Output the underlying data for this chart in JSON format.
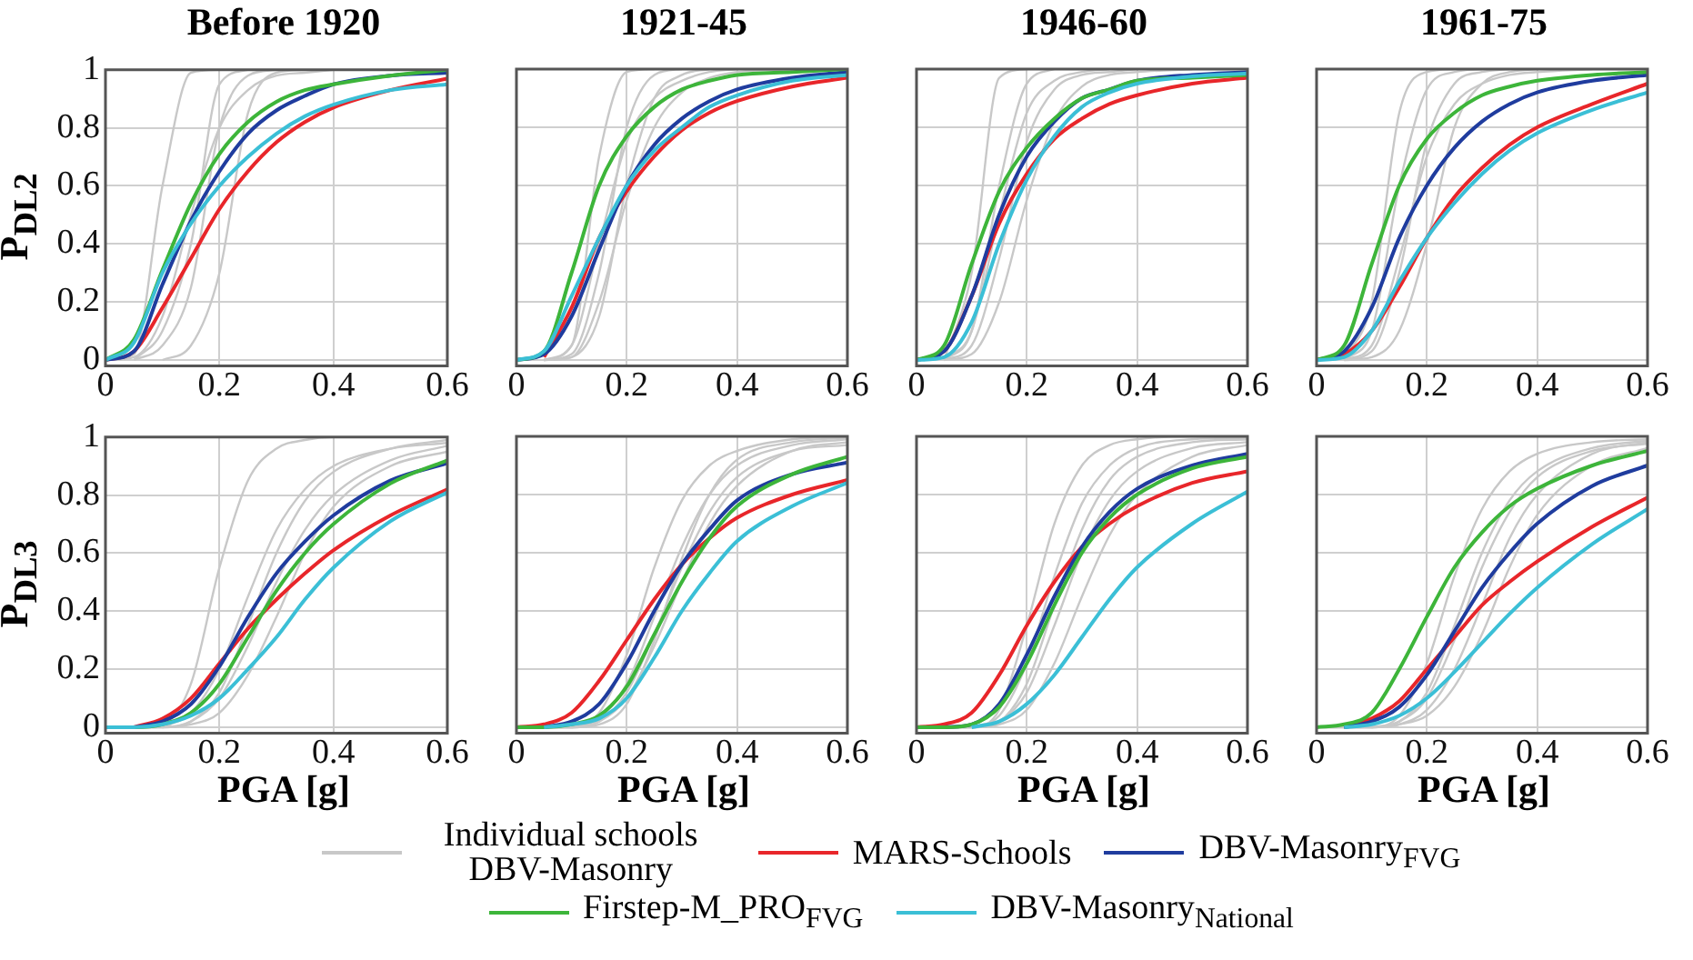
{
  "chart_data": [
    {
      "type": "line",
      "title": "Before 1920",
      "ylabel": "P$_{DL2}$",
      "x": [
        0,
        0.05,
        0.1,
        0.15,
        0.2,
        0.25,
        0.3,
        0.35,
        0.4,
        0.5,
        0.6
      ],
      "xlim": [
        0,
        0.6
      ],
      "ylim": [
        -0.02,
        1
      ],
      "xticks": [
        0,
        0.2,
        0.4,
        0.6
      ],
      "yticks": [
        0,
        0.2,
        0.4,
        0.6,
        0.8,
        1
      ],
      "grid": true,
      "legend": "bottom",
      "marker": "none",
      "series": [
        {
          "name": "Individual schools DBV-Masonry",
          "color": "#c8c8c8",
          "x": [
            0,
            0.05,
            0.1,
            0.15,
            0.2
          ],
          "values": [
            0,
            0.02,
            0.6,
            0.99,
            1
          ]
        },
        {
          "color": "#c8c8c8",
          "x": [
            0.05,
            0.1,
            0.15,
            0.2,
            0.25
          ],
          "values": [
            0,
            0.1,
            0.4,
            0.95,
            1
          ]
        },
        {
          "color": "#c8c8c8",
          "x": [
            0.05,
            0.1,
            0.15,
            0.2,
            0.25,
            0.3
          ],
          "values": [
            0,
            0.05,
            0.25,
            0.8,
            0.98,
            1
          ]
        },
        {
          "color": "#c8c8c8",
          "x": [
            0.1,
            0.15,
            0.2,
            0.25,
            0.3,
            0.35
          ],
          "values": [
            0,
            0.05,
            0.3,
            0.85,
            0.99,
            1
          ]
        },
        {
          "color": "#c8c8c8",
          "x": [
            0,
            0.05,
            0.1,
            0.15,
            0.2,
            0.25,
            0.3,
            0.35,
            0.4
          ],
          "values": [
            0,
            0.01,
            0.15,
            0.5,
            0.8,
            0.93,
            0.98,
            0.99,
            1
          ]
        },
        {
          "name": "MARS-Schools",
          "color": "#e8262a",
          "values": [
            0,
            0.03,
            0.18,
            0.35,
            0.52,
            0.65,
            0.75,
            0.82,
            0.87,
            0.93,
            0.97
          ]
        },
        {
          "name": "DBV-Masonry$_{FVG}$",
          "color": "#1f3c9e",
          "values": [
            0,
            0.03,
            0.26,
            0.48,
            0.65,
            0.78,
            0.86,
            0.91,
            0.95,
            0.98,
            0.99
          ]
        },
        {
          "name": "Firstep-M_PRO$_{FVG}$",
          "color": "#3db53a",
          "values": [
            0,
            0.07,
            0.31,
            0.54,
            0.71,
            0.82,
            0.89,
            0.93,
            0.95,
            0.98,
            1
          ]
        },
        {
          "name": "DBV-Masonry$_{National}$",
          "color": "#3bbfd6",
          "values": [
            0,
            0.06,
            0.3,
            0.47,
            0.6,
            0.7,
            0.78,
            0.84,
            0.88,
            0.93,
            0.95
          ]
        }
      ]
    },
    {
      "type": "line",
      "title": "1921-45",
      "x": [
        0,
        0.05,
        0.1,
        0.15,
        0.2,
        0.25,
        0.3,
        0.35,
        0.4,
        0.5,
        0.6
      ],
      "xlim": [
        0,
        0.6
      ],
      "ylim": [
        -0.02,
        1
      ],
      "xticks": [
        0,
        0.2,
        0.4,
        0.6
      ],
      "yticks": [
        0,
        0.2,
        0.4,
        0.6,
        0.8,
        1
      ],
      "grid": true,
      "tick_labels": "x",
      "marker": "none",
      "series": [
        {
          "color": "#c8c8c8",
          "x": [
            0.05,
            0.1,
            0.15,
            0.2,
            0.25
          ],
          "values": [
            0,
            0.05,
            0.7,
            0.99,
            1
          ]
        },
        {
          "color": "#c8c8c8",
          "x": [
            0.05,
            0.1,
            0.15,
            0.2,
            0.25,
            0.3
          ],
          "values": [
            0,
            0.02,
            0.3,
            0.8,
            0.98,
            1
          ]
        },
        {
          "color": "#c8c8c8",
          "x": [
            0.05,
            0.1,
            0.15,
            0.2,
            0.25,
            0.3,
            0.35
          ],
          "values": [
            0,
            0.01,
            0.15,
            0.6,
            0.9,
            0.98,
            1
          ]
        },
        {
          "color": "#c8c8c8",
          "x": [
            0.05,
            0.1,
            0.15,
            0.2,
            0.25,
            0.3,
            0.35,
            0.4
          ],
          "values": [
            0,
            0.05,
            0.4,
            0.75,
            0.9,
            0.96,
            0.99,
            1
          ]
        },
        {
          "color": "#c8c8c8",
          "x": [
            0.05,
            0.1,
            0.15,
            0.2,
            0.25,
            0.3,
            0.35,
            0.4,
            0.5
          ],
          "values": [
            0,
            0.01,
            0.2,
            0.55,
            0.8,
            0.92,
            0.97,
            0.99,
            1
          ]
        },
        {
          "color": "#e8262a",
          "values": [
            null,
            0.01,
            0.18,
            0.42,
            0.58,
            0.7,
            0.79,
            0.85,
            0.89,
            0.94,
            0.97
          ]
        },
        {
          "color": "#1f3c9e",
          "values": [
            0,
            0.02,
            0.15,
            0.38,
            0.6,
            0.74,
            0.83,
            0.89,
            0.93,
            0.97,
            0.99
          ]
        },
        {
          "color": "#3db53a",
          "values": [
            0,
            0.03,
            0.3,
            0.6,
            0.77,
            0.87,
            0.93,
            0.96,
            0.98,
            0.99,
            1
          ]
        },
        {
          "color": "#3bbfd6",
          "values": [
            0,
            0.03,
            0.22,
            0.42,
            0.6,
            0.72,
            0.8,
            0.87,
            0.91,
            0.96,
            0.98
          ]
        }
      ]
    },
    {
      "type": "line",
      "title": "1946-60",
      "x": [
        0,
        0.05,
        0.1,
        0.15,
        0.2,
        0.25,
        0.3,
        0.35,
        0.4,
        0.5,
        0.6
      ],
      "xlim": [
        0,
        0.6
      ],
      "ylim": [
        -0.02,
        1
      ],
      "xticks": [
        0,
        0.2,
        0.4,
        0.6
      ],
      "yticks": [
        0,
        0.2,
        0.4,
        0.6,
        0.8,
        1
      ],
      "grid": true,
      "tick_labels": "x",
      "marker": "none",
      "series": [
        {
          "color": "#c8c8c8",
          "x": [
            0.05,
            0.1,
            0.15,
            0.2
          ],
          "values": [
            0,
            0.3,
            0.97,
            1
          ]
        },
        {
          "color": "#c8c8c8",
          "x": [
            0.05,
            0.1,
            0.15,
            0.2,
            0.25
          ],
          "values": [
            0,
            0.1,
            0.6,
            0.95,
            1
          ]
        },
        {
          "color": "#c8c8c8",
          "x": [
            0.05,
            0.1,
            0.15,
            0.2,
            0.25,
            0.3,
            0.35,
            0.4
          ],
          "values": [
            0,
            0.05,
            0.35,
            0.75,
            0.93,
            0.98,
            0.99,
            1
          ]
        },
        {
          "color": "#c8c8c8",
          "x": [
            0.05,
            0.1,
            0.15,
            0.2,
            0.25,
            0.3,
            0.35,
            0.4,
            0.5
          ],
          "values": [
            0,
            0.02,
            0.2,
            0.55,
            0.82,
            0.94,
            0.98,
            0.99,
            1
          ]
        },
        {
          "color": "#c8c8c8",
          "x": [
            0.05,
            0.1,
            0.15,
            0.2,
            0.25,
            0.3,
            0.35
          ],
          "values": [
            0,
            0.1,
            0.5,
            0.85,
            0.96,
            0.99,
            1
          ]
        },
        {
          "color": "#e8262a",
          "values": [
            0,
            0.03,
            0.22,
            0.47,
            0.64,
            0.76,
            0.83,
            0.88,
            0.91,
            0.95,
            0.97
          ]
        },
        {
          "color": "#1f3c9e",
          "values": [
            0,
            0.03,
            0.22,
            0.5,
            0.7,
            0.82,
            0.9,
            0.93,
            0.96,
            0.98,
            0.99
          ]
        },
        {
          "color": "#3db53a",
          "values": [
            0,
            0.05,
            0.33,
            0.58,
            0.73,
            0.83,
            0.9,
            0.93,
            0.96,
            0.97,
            0.98
          ]
        },
        {
          "color": "#3bbfd6",
          "values": [
            0,
            0.01,
            0.13,
            0.4,
            0.62,
            0.77,
            0.87,
            0.92,
            0.95,
            0.975,
            0.985
          ]
        }
      ]
    },
    {
      "type": "line",
      "title": "1961-75",
      "x": [
        0,
        0.05,
        0.1,
        0.15,
        0.2,
        0.25,
        0.3,
        0.35,
        0.4,
        0.5,
        0.6
      ],
      "xlim": [
        0,
        0.6
      ],
      "ylim": [
        -0.02,
        1
      ],
      "xticks": [
        0,
        0.2,
        0.4,
        0.6
      ],
      "yticks": [
        0,
        0.2,
        0.4,
        0.6,
        0.8,
        1
      ],
      "grid": true,
      "tick_labels": "x",
      "marker": "none",
      "series": [
        {
          "color": "#c8c8c8",
          "x": [
            0.05,
            0.1,
            0.15,
            0.2,
            0.25
          ],
          "values": [
            0,
            0.2,
            0.85,
            0.99,
            1
          ]
        },
        {
          "color": "#c8c8c8",
          "x": [
            0.05,
            0.1,
            0.15,
            0.2,
            0.25,
            0.3
          ],
          "values": [
            0,
            0.1,
            0.6,
            0.93,
            0.99,
            1
          ]
        },
        {
          "color": "#c8c8c8",
          "x": [
            0.05,
            0.1,
            0.15,
            0.2,
            0.25,
            0.3,
            0.35
          ],
          "values": [
            0,
            0.03,
            0.3,
            0.75,
            0.95,
            0.99,
            1
          ]
        },
        {
          "color": "#c8c8c8",
          "x": [
            0.05,
            0.1,
            0.15,
            0.2,
            0.25,
            0.3,
            0.35,
            0.4
          ],
          "values": [
            0,
            0.01,
            0.1,
            0.4,
            0.8,
            0.95,
            0.99,
            1
          ]
        },
        {
          "color": "#c8c8c8",
          "x": [
            0.05,
            0.1,
            0.15,
            0.2,
            0.25,
            0.3,
            0.35,
            0.4,
            0.5
          ],
          "values": [
            0,
            0.05,
            0.35,
            0.7,
            0.88,
            0.95,
            0.98,
            0.99,
            1
          ]
        },
        {
          "color": "#e8262a",
          "values": [
            0,
            0.02,
            0.1,
            0.25,
            0.42,
            0.56,
            0.66,
            0.74,
            0.8,
            0.88,
            0.95
          ]
        },
        {
          "color": "#1f3c9e",
          "values": [
            0,
            0.03,
            0.18,
            0.42,
            0.6,
            0.73,
            0.82,
            0.88,
            0.92,
            0.96,
            0.98
          ]
        },
        {
          "color": "#3db53a",
          "values": [
            0,
            0.05,
            0.33,
            0.6,
            0.76,
            0.85,
            0.91,
            0.94,
            0.96,
            0.98,
            0.99
          ]
        },
        {
          "color": "#3bbfd6",
          "values": [
            0,
            0.01,
            0.1,
            0.27,
            0.42,
            0.54,
            0.64,
            0.72,
            0.78,
            0.86,
            0.92
          ]
        }
      ]
    },
    {
      "type": "line",
      "ylabel": "P$_{DL3}$",
      "xlabel": "PGA [g]",
      "x": [
        0,
        0.05,
        0.1,
        0.15,
        0.2,
        0.25,
        0.3,
        0.35,
        0.4,
        0.5,
        0.6
      ],
      "xlim": [
        0,
        0.6
      ],
      "ylim": [
        -0.02,
        1
      ],
      "xticks": [
        0,
        0.2,
        0.4,
        0.6
      ],
      "yticks": [
        0,
        0.2,
        0.4,
        0.6,
        0.8,
        1
      ],
      "grid": true,
      "marker": "none",
      "series": [
        {
          "color": "#c8c8c8",
          "values": [
            0,
            0,
            0.01,
            0.15,
            0.55,
            0.85,
            0.96,
            0.99,
            1,
            1,
            1
          ]
        },
        {
          "color": "#c8c8c8",
          "x": [
            0.1,
            0.15,
            0.2,
            0.25,
            0.3,
            0.35,
            0.4,
            0.5,
            0.6
          ],
          "values": [
            0,
            0.05,
            0.2,
            0.45,
            0.68,
            0.82,
            0.9,
            0.96,
            0.98
          ]
        },
        {
          "color": "#c8c8c8",
          "x": [
            0.05,
            0.1,
            0.15,
            0.2,
            0.25,
            0.3,
            0.35,
            0.4,
            0.5,
            0.6
          ],
          "values": [
            0,
            0,
            0.02,
            0.12,
            0.35,
            0.6,
            0.78,
            0.88,
            0.96,
            0.99
          ]
        },
        {
          "color": "#c8c8c8",
          "x": [
            0.1,
            0.15,
            0.2,
            0.25,
            0.3,
            0.35,
            0.4,
            0.5,
            0.6
          ],
          "values": [
            0,
            0.01,
            0.05,
            0.18,
            0.38,
            0.6,
            0.76,
            0.9,
            0.95
          ]
        },
        {
          "color": "#c8c8c8",
          "values": [
            0,
            0,
            0,
            0.02,
            0.1,
            0.28,
            0.5,
            0.68,
            0.8,
            0.92,
            0.97
          ]
        },
        {
          "color": "#e8262a",
          "x": [
            0.05,
            0.1,
            0.15,
            0.2,
            0.25,
            0.3,
            0.35,
            0.4,
            0.5,
            0.6
          ],
          "values": [
            0,
            0.03,
            0.1,
            0.22,
            0.34,
            0.44,
            0.53,
            0.61,
            0.73,
            0.82
          ]
        },
        {
          "color": "#1f3c9e",
          "x": [
            0.05,
            0.1,
            0.15,
            0.2,
            0.25,
            0.3,
            0.35,
            0.4,
            0.5,
            0.6
          ],
          "values": [
            0,
            0.02,
            0.08,
            0.21,
            0.38,
            0.53,
            0.64,
            0.73,
            0.85,
            0.91
          ]
        },
        {
          "color": "#3db53a",
          "values": [
            0,
            0,
            0.01,
            0.05,
            0.15,
            0.31,
            0.47,
            0.6,
            0.7,
            0.84,
            0.92
          ]
        },
        {
          "color": "#3bbfd6",
          "values": [
            0,
            0,
            0.01,
            0.04,
            0.1,
            0.2,
            0.31,
            0.44,
            0.55,
            0.71,
            0.81
          ]
        }
      ]
    },
    {
      "type": "line",
      "xlabel": "PGA [g]",
      "x": [
        0,
        0.05,
        0.1,
        0.15,
        0.2,
        0.25,
        0.3,
        0.35,
        0.4,
        0.5,
        0.6
      ],
      "xlim": [
        0,
        0.6
      ],
      "ylim": [
        -0.02,
        1
      ],
      "xticks": [
        0,
        0.2,
        0.4,
        0.6
      ],
      "yticks": [
        0,
        0.2,
        0.4,
        0.6,
        0.8,
        1
      ],
      "grid": true,
      "tick_labels": "x",
      "marker": "none",
      "series": [
        {
          "color": "#c8c8c8",
          "values": [
            0,
            0,
            0,
            0.05,
            0.25,
            0.55,
            0.78,
            0.9,
            0.95,
            0.99,
            1
          ]
        },
        {
          "color": "#c8c8c8",
          "x": [
            0.1,
            0.15,
            0.2,
            0.25,
            0.3,
            0.35,
            0.4,
            0.5,
            0.6
          ],
          "values": [
            0,
            0.03,
            0.15,
            0.38,
            0.62,
            0.8,
            0.9,
            0.97,
            0.99
          ]
        },
        {
          "color": "#c8c8c8",
          "x": [
            0.05,
            0.1,
            0.15,
            0.2,
            0.25,
            0.3,
            0.35,
            0.4,
            0.5,
            0.6
          ],
          "values": [
            0,
            0,
            0.02,
            0.1,
            0.28,
            0.5,
            0.7,
            0.83,
            0.95,
            0.98
          ]
        },
        {
          "color": "#c8c8c8",
          "x": [
            0.05,
            0.1,
            0.15,
            0.2,
            0.25,
            0.3,
            0.35,
            0.4,
            0.5,
            0.6
          ],
          "values": [
            0,
            0,
            0.01,
            0.08,
            0.3,
            0.58,
            0.8,
            0.92,
            0.98,
            0.995
          ]
        },
        {
          "color": "#c8c8c8",
          "values": [
            0,
            0,
            0,
            0.02,
            0.12,
            0.32,
            0.55,
            0.74,
            0.86,
            0.95,
            0.97
          ]
        },
        {
          "color": "#e8262a",
          "values": [
            0,
            0.01,
            0.05,
            0.16,
            0.3,
            0.44,
            0.56,
            0.65,
            0.72,
            0.8,
            0.85
          ]
        },
        {
          "color": "#1f3c9e",
          "x": [
            0.05,
            0.1,
            0.15,
            0.2,
            0.25,
            0.3,
            0.35,
            0.4,
            0.5,
            0.6
          ],
          "values": [
            0,
            0.02,
            0.08,
            0.22,
            0.4,
            0.56,
            0.68,
            0.78,
            0.87,
            0.91
          ]
        },
        {
          "color": "#3db53a",
          "values": [
            0,
            0,
            0.01,
            0.04,
            0.14,
            0.32,
            0.5,
            0.65,
            0.76,
            0.87,
            0.93
          ]
        },
        {
          "color": "#3bbfd6",
          "x": [
            0.05,
            0.1,
            0.15,
            0.2,
            0.25,
            0.3,
            0.35,
            0.4,
            0.5,
            0.6
          ],
          "values": [
            0,
            0.01,
            0.03,
            0.1,
            0.24,
            0.4,
            0.53,
            0.64,
            0.76,
            0.84
          ]
        }
      ]
    },
    {
      "type": "line",
      "xlabel": "PGA [g]",
      "x": [
        0,
        0.05,
        0.1,
        0.15,
        0.2,
        0.25,
        0.3,
        0.35,
        0.4,
        0.5,
        0.6
      ],
      "xlim": [
        0,
        0.6
      ],
      "ylim": [
        -0.02,
        1
      ],
      "xticks": [
        0,
        0.2,
        0.4,
        0.6
      ],
      "yticks": [
        0,
        0.2,
        0.4,
        0.6,
        0.8,
        1
      ],
      "grid": true,
      "tick_labels": "x",
      "marker": "none",
      "series": [
        {
          "color": "#c8c8c8",
          "values": [
            0,
            0,
            0,
            0.06,
            0.35,
            0.7,
            0.9,
            0.97,
            0.99,
            1,
            1
          ]
        },
        {
          "color": "#c8c8c8",
          "x": [
            0.1,
            0.15,
            0.2,
            0.25,
            0.3,
            0.35,
            0.4,
            0.5,
            0.6
          ],
          "values": [
            0,
            0.04,
            0.22,
            0.52,
            0.77,
            0.9,
            0.96,
            0.99,
            0.995
          ]
        },
        {
          "color": "#c8c8c8",
          "x": [
            0.1,
            0.15,
            0.2,
            0.25,
            0.3,
            0.35,
            0.4,
            0.5,
            0.6
          ],
          "values": [
            0,
            0.02,
            0.12,
            0.35,
            0.6,
            0.78,
            0.88,
            0.96,
            0.98
          ]
        },
        {
          "color": "#c8c8c8",
          "values": [
            0,
            0,
            0,
            0.01,
            0.06,
            0.22,
            0.45,
            0.66,
            0.8,
            0.93,
            0.97
          ]
        },
        {
          "color": "#c8c8c8",
          "x": [
            0.05,
            0.1,
            0.15,
            0.2,
            0.25,
            0.3,
            0.35,
            0.4,
            0.5,
            0.6
          ],
          "values": [
            0,
            0,
            0.02,
            0.15,
            0.42,
            0.68,
            0.85,
            0.93,
            0.98,
            0.99
          ]
        },
        {
          "color": "#e8262a",
          "values": [
            0,
            0.01,
            0.05,
            0.18,
            0.35,
            0.5,
            0.62,
            0.7,
            0.76,
            0.84,
            0.88
          ]
        },
        {
          "color": "#1f3c9e",
          "x": [
            0.05,
            0.1,
            0.15,
            0.2,
            0.25,
            0.3,
            0.35,
            0.4,
            0.5,
            0.6
          ],
          "values": [
            0,
            0.01,
            0.08,
            0.25,
            0.45,
            0.62,
            0.74,
            0.82,
            0.9,
            0.94
          ]
        },
        {
          "color": "#3db53a",
          "values": [
            0,
            0,
            0.01,
            0.07,
            0.22,
            0.42,
            0.6,
            0.72,
            0.8,
            0.89,
            0.93
          ]
        },
        {
          "color": "#3bbfd6",
          "x": [
            0.1,
            0.15,
            0.2,
            0.25,
            0.3,
            0.35,
            0.4,
            0.5,
            0.6
          ],
          "values": [
            0,
            0.02,
            0.08,
            0.18,
            0.31,
            0.44,
            0.55,
            0.7,
            0.81
          ]
        }
      ]
    },
    {
      "type": "line",
      "xlabel": "PGA [g]",
      "x": [
        0,
        0.05,
        0.1,
        0.15,
        0.2,
        0.25,
        0.3,
        0.35,
        0.4,
        0.5,
        0.6
      ],
      "xlim": [
        0,
        0.6
      ],
      "ylim": [
        -0.02,
        1
      ],
      "xticks": [
        0,
        0.2,
        0.4,
        0.6
      ],
      "yticks": [
        0,
        0.2,
        0.4,
        0.6,
        0.8,
        1
      ],
      "grid": true,
      "tick_labels": "x",
      "marker": "none",
      "series": [
        {
          "color": "#c8c8c8",
          "values": [
            0,
            0,
            0,
            0.04,
            0.22,
            0.52,
            0.75,
            0.88,
            0.94,
            0.98,
            0.99
          ]
        },
        {
          "color": "#c8c8c8",
          "x": [
            0.1,
            0.15,
            0.2,
            0.25,
            0.3,
            0.35,
            0.4,
            0.5,
            0.6
          ],
          "values": [
            0,
            0.02,
            0.12,
            0.35,
            0.6,
            0.78,
            0.88,
            0.96,
            0.985
          ]
        },
        {
          "color": "#c8c8c8",
          "x": [
            0.05,
            0.1,
            0.15,
            0.2,
            0.25,
            0.3,
            0.35,
            0.4,
            0.5,
            0.6
          ],
          "values": [
            0,
            0,
            0.01,
            0.06,
            0.2,
            0.42,
            0.65,
            0.8,
            0.94,
            0.98
          ]
        },
        {
          "color": "#c8c8c8",
          "x": [
            0.1,
            0.15,
            0.2,
            0.25,
            0.3,
            0.35,
            0.4,
            0.5,
            0.6
          ],
          "values": [
            0,
            0.01,
            0.04,
            0.14,
            0.32,
            0.55,
            0.73,
            0.9,
            0.96
          ]
        },
        {
          "color": "#c8c8c8",
          "values": [
            0,
            0,
            0,
            0.02,
            0.1,
            0.3,
            0.55,
            0.74,
            0.86,
            0.95,
            0.975
          ]
        },
        {
          "color": "#e8262a",
          "x": [
            0.05,
            0.1,
            0.15,
            0.2,
            0.25,
            0.3,
            0.35,
            0.4,
            0.5,
            0.6
          ],
          "values": [
            0,
            0.03,
            0.09,
            0.2,
            0.31,
            0.42,
            0.5,
            0.57,
            0.69,
            0.79
          ]
        },
        {
          "color": "#1f3c9e",
          "x": [
            0.05,
            0.1,
            0.15,
            0.2,
            0.25,
            0.3,
            0.35,
            0.4,
            0.5,
            0.6
          ],
          "values": [
            0,
            0.02,
            0.07,
            0.18,
            0.33,
            0.48,
            0.6,
            0.7,
            0.83,
            0.9
          ]
        },
        {
          "color": "#3db53a",
          "values": [
            0,
            0.01,
            0.05,
            0.2,
            0.38,
            0.55,
            0.67,
            0.76,
            0.82,
            0.9,
            0.95
          ]
        },
        {
          "color": "#3bbfd6",
          "x": [
            0.05,
            0.1,
            0.15,
            0.2,
            0.25,
            0.3,
            0.35,
            0.4,
            0.5,
            0.6
          ],
          "values": [
            0,
            0.01,
            0.04,
            0.1,
            0.19,
            0.29,
            0.39,
            0.48,
            0.63,
            0.75
          ]
        }
      ]
    }
  ]
}
